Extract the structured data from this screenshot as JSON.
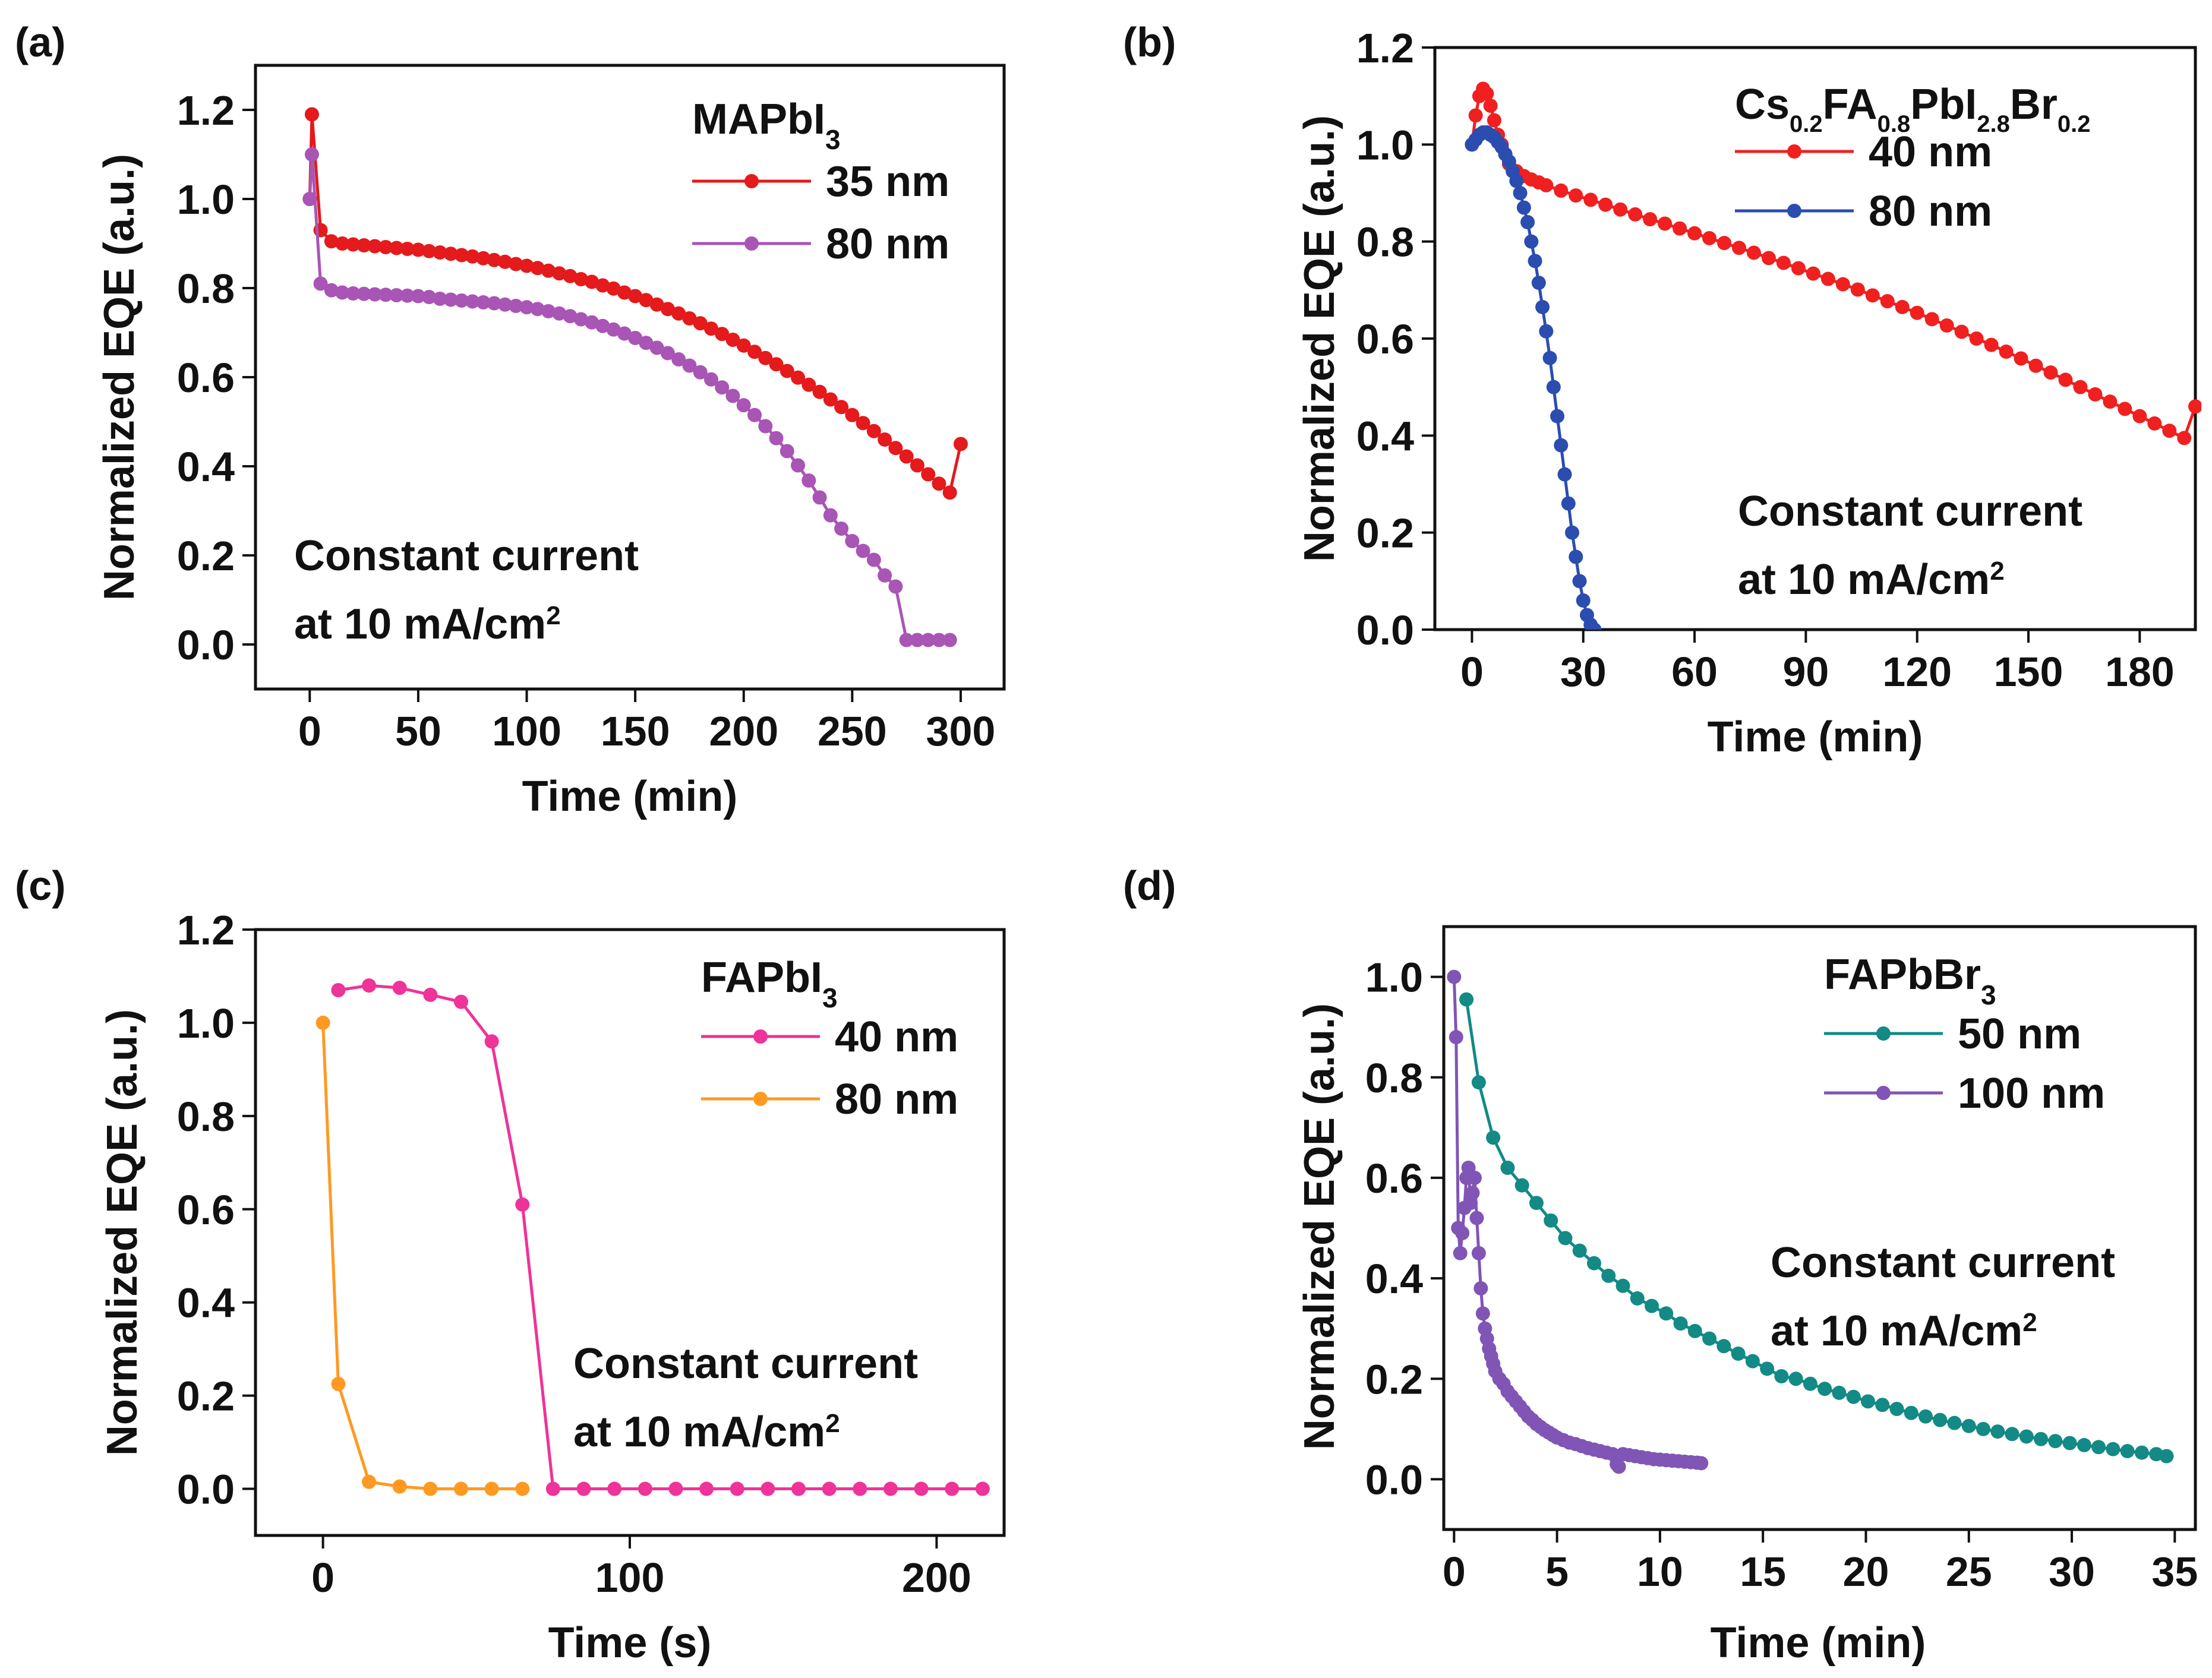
{
  "figure": {
    "panel_labels": [
      "(a)",
      "(b)",
      "(c)",
      "(d)"
    ]
  },
  "chart_data": [
    {
      "id": "a",
      "panel_label": "(a)",
      "type": "line",
      "title": "",
      "legend_title": {
        "base": "MAPbI",
        "sub": "3"
      },
      "xlabel": "Time (min)",
      "ylabel": "Normalized EQE (a.u.)",
      "xlim": [
        -25,
        320
      ],
      "ylim": [
        -0.1,
        1.3
      ],
      "xticks": [
        0,
        50,
        100,
        150,
        200,
        250,
        300
      ],
      "yticks": [
        0.0,
        0.2,
        0.4,
        0.6,
        0.8,
        1.0,
        1.2
      ],
      "yprecision": 1,
      "annotation": {
        "line1": "Constant current",
        "line2": "at 10 mA/cm",
        "sup": "2",
        "position": "lower-left"
      },
      "legend_position": "top-right",
      "series": [
        {
          "name": "35 nm",
          "color": "#e41a1c",
          "marker_every": 1,
          "x": [
            0,
            1,
            5,
            10,
            15,
            20,
            25,
            30,
            35,
            40,
            45,
            50,
            55,
            60,
            65,
            70,
            75,
            80,
            85,
            90,
            95,
            100,
            105,
            110,
            115,
            120,
            125,
            130,
            135,
            140,
            145,
            150,
            155,
            160,
            165,
            170,
            175,
            180,
            185,
            190,
            195,
            200,
            205,
            210,
            215,
            220,
            225,
            230,
            235,
            240,
            245,
            250,
            255,
            260,
            265,
            270,
            275,
            280,
            285,
            290,
            295,
            300
          ],
          "y": [
            1.0,
            1.19,
            0.93,
            0.905,
            0.9,
            0.898,
            0.896,
            0.894,
            0.892,
            0.89,
            0.888,
            0.886,
            0.883,
            0.88,
            0.877,
            0.874,
            0.871,
            0.867,
            0.863,
            0.859,
            0.854,
            0.85,
            0.845,
            0.839,
            0.833,
            0.827,
            0.82,
            0.814,
            0.806,
            0.799,
            0.79,
            0.782,
            0.773,
            0.763,
            0.753,
            0.743,
            0.732,
            0.721,
            0.709,
            0.697,
            0.684,
            0.671,
            0.657,
            0.643,
            0.629,
            0.614,
            0.599,
            0.583,
            0.567,
            0.55,
            0.533,
            0.515,
            0.497,
            0.479,
            0.46,
            0.441,
            0.422,
            0.402,
            0.382,
            0.361,
            0.341,
            0.45
          ]
        },
        {
          "name": "80 nm",
          "color": "#a855b5",
          "marker_every": 1,
          "x": [
            0,
            1,
            5,
            10,
            15,
            20,
            25,
            30,
            35,
            40,
            45,
            50,
            55,
            60,
            65,
            70,
            75,
            80,
            85,
            90,
            95,
            100,
            105,
            110,
            115,
            120,
            125,
            130,
            135,
            140,
            145,
            150,
            155,
            160,
            165,
            170,
            175,
            180,
            185,
            190,
            195,
            200,
            205,
            210,
            215,
            220,
            225,
            230,
            235,
            240,
            245,
            250,
            255,
            260,
            265,
            270,
            275,
            280,
            285,
            290,
            295
          ],
          "y": [
            1.0,
            1.1,
            0.81,
            0.795,
            0.79,
            0.788,
            0.787,
            0.786,
            0.785,
            0.784,
            0.783,
            0.782,
            0.78,
            0.776,
            0.774,
            0.772,
            0.77,
            0.768,
            0.766,
            0.763,
            0.76,
            0.757,
            0.753,
            0.748,
            0.743,
            0.737,
            0.73,
            0.723,
            0.715,
            0.707,
            0.698,
            0.688,
            0.677,
            0.666,
            0.654,
            0.64,
            0.626,
            0.611,
            0.595,
            0.577,
            0.558,
            0.537,
            0.515,
            0.49,
            0.463,
            0.434,
            0.402,
            0.368,
            0.33,
            0.29,
            0.26,
            0.232,
            0.21,
            0.19,
            0.155,
            0.13,
            0.01,
            0.01,
            0.01,
            0.01,
            0.01
          ]
        }
      ]
    },
    {
      "id": "b",
      "panel_label": "(b)",
      "type": "line",
      "title": "",
      "legend_title_parts": [
        [
          "Cs",
          false
        ],
        [
          "0.2",
          true
        ],
        [
          "FA",
          false
        ],
        [
          "0.8",
          true
        ],
        [
          "PbI",
          false
        ],
        [
          "2.8",
          true
        ],
        [
          "Br",
          false
        ],
        [
          "0.2",
          true
        ]
      ],
      "xlabel": "Time (min)",
      "ylabel": "Normalized EQE (a.u.)",
      "xlim": [
        -10,
        195
      ],
      "ylim": [
        0.0,
        1.2
      ],
      "xticks": [
        0,
        30,
        60,
        90,
        120,
        150,
        180
      ],
      "yticks": [
        0.0,
        0.2,
        0.4,
        0.6,
        0.8,
        1.0,
        1.2
      ],
      "yprecision": 1,
      "annotation": {
        "line1": "Constant current",
        "line2": "at 10 mA/cm",
        "sup": "2",
        "position": "lower-right"
      },
      "legend_position": "top-right",
      "series": [
        {
          "name": "40 nm",
          "color": "#f02020",
          "marker_every": 1,
          "x": [
            0,
            1,
            2,
            3,
            4,
            5,
            6,
            7,
            8,
            9,
            10,
            12,
            14,
            16,
            18,
            20,
            24,
            28,
            32,
            36,
            40,
            44,
            48,
            52,
            56,
            60,
            64,
            68,
            72,
            76,
            80,
            84,
            88,
            92,
            96,
            100,
            104,
            108,
            112,
            116,
            120,
            124,
            128,
            132,
            136,
            140,
            144,
            148,
            152,
            156,
            160,
            164,
            168,
            172,
            176,
            180,
            184,
            188,
            192,
            195
          ],
          "y": [
            1.0,
            1.06,
            1.1,
            1.115,
            1.105,
            1.08,
            1.05,
            1.02,
            1.0,
            0.98,
            0.96,
            0.945,
            0.935,
            0.928,
            0.922,
            0.916,
            0.905,
            0.895,
            0.886,
            0.876,
            0.866,
            0.856,
            0.846,
            0.837,
            0.827,
            0.817,
            0.807,
            0.797,
            0.787,
            0.777,
            0.766,
            0.756,
            0.745,
            0.734,
            0.723,
            0.712,
            0.701,
            0.689,
            0.677,
            0.665,
            0.653,
            0.64,
            0.627,
            0.614,
            0.6,
            0.587,
            0.573,
            0.559,
            0.544,
            0.53,
            0.515,
            0.5,
            0.485,
            0.47,
            0.455,
            0.44,
            0.425,
            0.41,
            0.395,
            0.46
          ]
        },
        {
          "name": "80 nm",
          "color": "#2b4db0",
          "marker_every": 1,
          "x": [
            0,
            1,
            2,
            3,
            4,
            5,
            6,
            7,
            8,
            9,
            10,
            11,
            12,
            13,
            14,
            15,
            16,
            17,
            18,
            19,
            20,
            21,
            22,
            23,
            24,
            25,
            26,
            27,
            28,
            29,
            30,
            31,
            32,
            33
          ],
          "y": [
            1.0,
            1.01,
            1.02,
            1.025,
            1.025,
            1.02,
            1.015,
            1.005,
            0.995,
            0.98,
            0.965,
            0.945,
            0.925,
            0.9,
            0.87,
            0.84,
            0.8,
            0.76,
            0.715,
            0.665,
            0.615,
            0.56,
            0.5,
            0.44,
            0.38,
            0.32,
            0.26,
            0.2,
            0.15,
            0.1,
            0.06,
            0.03,
            0.01,
            0.0
          ]
        }
      ]
    },
    {
      "id": "c",
      "panel_label": "(c)",
      "type": "line",
      "title": "",
      "legend_title": {
        "base": "FAPbI",
        "sub": "3"
      },
      "xlabel": "Time (s)",
      "ylabel": "Normalized EQE (a.u.)",
      "xlim": [
        -22,
        222
      ],
      "ylim": [
        -0.1,
        1.2
      ],
      "xticks": [
        0,
        100,
        200
      ],
      "yticks": [
        0.0,
        0.2,
        0.4,
        0.6,
        0.8,
        1.0,
        1.2
      ],
      "yprecision": 1,
      "annotation": {
        "line1": "Constant current",
        "line2": "at 10 mA/cm",
        "sup": "2",
        "position": "lower-right"
      },
      "legend_position": "top-right",
      "series": [
        {
          "name": "40 nm",
          "color": "#ee3399",
          "marker_every": 1,
          "x": [
            5,
            15,
            25,
            35,
            45,
            55,
            65,
            75,
            85,
            95,
            105,
            115,
            125,
            135,
            145,
            155,
            165,
            175,
            185,
            195,
            205,
            215
          ],
          "y": [
            1.07,
            1.08,
            1.075,
            1.06,
            1.045,
            0.96,
            0.61,
            0.0,
            0.0,
            0.0,
            0.0,
            0.0,
            0.0,
            0.0,
            0.0,
            0.0,
            0.0,
            0.0,
            0.0,
            0.0,
            0.0,
            0.0
          ]
        },
        {
          "name": "80 nm",
          "color": "#ff9922",
          "marker_every": 1,
          "x": [
            0,
            5,
            15,
            25,
            35,
            45,
            55,
            65
          ],
          "y": [
            1.0,
            0.225,
            0.015,
            0.005,
            0.0,
            0.0,
            0.0,
            0.0
          ]
        }
      ]
    },
    {
      "id": "d",
      "panel_label": "(d)",
      "type": "line",
      "title": "",
      "legend_title": {
        "base": "FAPbBr",
        "sub": "3"
      },
      "xlabel": "Time (min)",
      "ylabel": "Normalized EQE (a.u.)",
      "xlim": [
        -0.5,
        36
      ],
      "ylim": [
        -0.1,
        1.1
      ],
      "xticks": [
        0,
        5,
        10,
        15,
        20,
        25,
        30,
        35
      ],
      "yticks": [
        0.0,
        0.2,
        0.4,
        0.6,
        0.8,
        1.0
      ],
      "yprecision": 1,
      "annotation": {
        "line1": "Constant current",
        "line2": "at 10 mA/cm",
        "sup": "2",
        "position": "middle-right"
      },
      "legend_position": "top-right",
      "series": [
        {
          "name": "50 nm",
          "color": "#138a85",
          "marker_every": 1,
          "x": [
            0.6,
            1.2,
            1.9,
            2.6,
            3.3,
            4.0,
            4.7,
            5.4,
            6.1,
            6.8,
            7.5,
            8.2,
            8.9,
            9.6,
            10.3,
            11.0,
            11.7,
            12.4,
            13.1,
            13.8,
            14.5,
            15.2,
            15.9,
            16.6,
            17.3,
            18.0,
            18.7,
            19.4,
            20.1,
            20.8,
            21.5,
            22.2,
            22.9,
            23.6,
            24.3,
            25.0,
            25.7,
            26.4,
            27.1,
            27.8,
            28.5,
            29.2,
            29.9,
            30.6,
            31.3,
            32.0,
            32.7,
            33.4,
            34.1,
            34.6
          ],
          "y": [
            0.955,
            0.79,
            0.68,
            0.62,
            0.585,
            0.55,
            0.515,
            0.48,
            0.455,
            0.43,
            0.405,
            0.385,
            0.36,
            0.345,
            0.33,
            0.31,
            0.295,
            0.28,
            0.265,
            0.25,
            0.235,
            0.22,
            0.205,
            0.2,
            0.19,
            0.18,
            0.172,
            0.164,
            0.155,
            0.148,
            0.14,
            0.132,
            0.125,
            0.118,
            0.112,
            0.106,
            0.1,
            0.095,
            0.09,
            0.085,
            0.08,
            0.076,
            0.072,
            0.068,
            0.064,
            0.06,
            0.056,
            0.053,
            0.05,
            0.046
          ]
        },
        {
          "name": "100 nm",
          "color": "#8055b5",
          "marker_every": 1,
          "x": [
            0.0,
            0.1,
            0.2,
            0.3,
            0.4,
            0.5,
            0.6,
            0.7,
            0.8,
            0.9,
            1.0,
            1.1,
            1.2,
            1.3,
            1.4,
            1.5,
            1.6,
            1.7,
            1.8,
            1.9,
            2.0,
            2.2,
            2.4,
            2.6,
            2.8,
            3.0,
            3.2,
            3.4,
            3.6,
            3.8,
            4.0,
            4.2,
            4.4,
            4.6,
            4.8,
            5.0,
            5.3,
            5.6,
            5.9,
            6.2,
            6.5,
            6.8,
            7.1,
            7.4,
            7.7,
            7.9,
            8.0,
            8.2,
            8.5,
            8.8,
            9.1,
            9.4,
            9.7,
            10.0,
            10.3,
            10.6,
            10.9,
            11.2,
            11.5,
            11.8,
            12.0
          ],
          "y": [
            1.0,
            0.88,
            0.5,
            0.45,
            0.49,
            0.54,
            0.6,
            0.62,
            0.55,
            0.57,
            0.6,
            0.52,
            0.45,
            0.38,
            0.33,
            0.3,
            0.28,
            0.26,
            0.245,
            0.23,
            0.215,
            0.2,
            0.19,
            0.175,
            0.165,
            0.155,
            0.145,
            0.135,
            0.125,
            0.118,
            0.11,
            0.104,
            0.098,
            0.093,
            0.088,
            0.083,
            0.078,
            0.073,
            0.07,
            0.066,
            0.062,
            0.059,
            0.056,
            0.053,
            0.05,
            0.03,
            0.025,
            0.05,
            0.048,
            0.046,
            0.044,
            0.042,
            0.04,
            0.039,
            0.038,
            0.037,
            0.036,
            0.035,
            0.034,
            0.033,
            0.032
          ]
        }
      ]
    }
  ]
}
